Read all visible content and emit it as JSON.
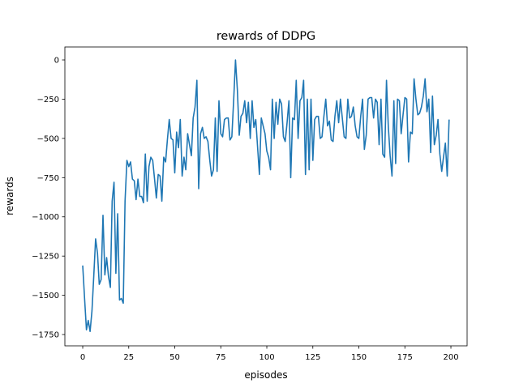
{
  "chart_data": {
    "type": "line",
    "title": "rewards of DDPG",
    "xlabel": "episodes",
    "ylabel": "rewards",
    "xlim": [
      -9.7,
      208.8
    ],
    "ylim": [
      -1822,
      82.6
    ],
    "xticks": [
      0,
      25,
      50,
      75,
      100,
      125,
      150,
      175,
      200
    ],
    "yticks": [
      0,
      -250,
      -500,
      -750,
      -1000,
      -1250,
      -1500,
      -1750
    ],
    "grid": false,
    "line_color": "#1f77b4",
    "series": [
      {
        "values": [
          -1310,
          -1520,
          -1720,
          -1660,
          -1730,
          -1600,
          -1380,
          -1140,
          -1230,
          -1430,
          -1400,
          -990,
          -1370,
          -1260,
          -1380,
          -1450,
          -900,
          -780,
          -1360,
          -980,
          -1530,
          -1520,
          -1550,
          -900,
          -640,
          -680,
          -650,
          -760,
          -770,
          -890,
          -760,
          -870,
          -870,
          -910,
          -600,
          -900,
          -680,
          -620,
          -640,
          -760,
          -880,
          -730,
          -740,
          -900,
          -620,
          -650,
          -510,
          -380,
          -500,
          -510,
          -720,
          -460,
          -560,
          -380,
          -740,
          -620,
          -700,
          -470,
          -540,
          -610,
          -370,
          -300,
          -130,
          -820,
          -470,
          -430,
          -500,
          -490,
          -520,
          -640,
          -740,
          -700,
          -370,
          -710,
          -260,
          -470,
          -490,
          -380,
          -370,
          -370,
          -510,
          -490,
          -250,
          0,
          -190,
          -480,
          -360,
          -340,
          -260,
          -400,
          -270,
          -500,
          -260,
          -430,
          -380,
          -560,
          -730,
          -370,
          -420,
          -470,
          -580,
          -620,
          -700,
          -250,
          -500,
          -270,
          -410,
          -250,
          -280,
          -490,
          -520,
          -400,
          -260,
          -750,
          -370,
          -380,
          -130,
          -500,
          -260,
          -240,
          -130,
          -730,
          -250,
          -700,
          -250,
          -640,
          -380,
          -360,
          -360,
          -500,
          -490,
          -360,
          -250,
          -420,
          -390,
          -510,
          -520,
          -360,
          -260,
          -400,
          -250,
          -370,
          -490,
          -500,
          -250,
          -370,
          -360,
          -300,
          -420,
          -490,
          -500,
          -360,
          -250,
          -570,
          -480,
          -250,
          -240,
          -240,
          -370,
          -250,
          -270,
          -540,
          -250,
          -600,
          -620,
          -130,
          -420,
          -610,
          -740,
          -260,
          -660,
          -250,
          -260,
          -470,
          -350,
          -240,
          -250,
          -650,
          -460,
          -470,
          -120,
          -250,
          -350,
          -340,
          -300,
          -230,
          -120,
          -330,
          -250,
          -590,
          -230,
          -540,
          -480,
          -380,
          -600,
          -710,
          -620,
          -530,
          -740,
          -380
        ]
      }
    ]
  }
}
